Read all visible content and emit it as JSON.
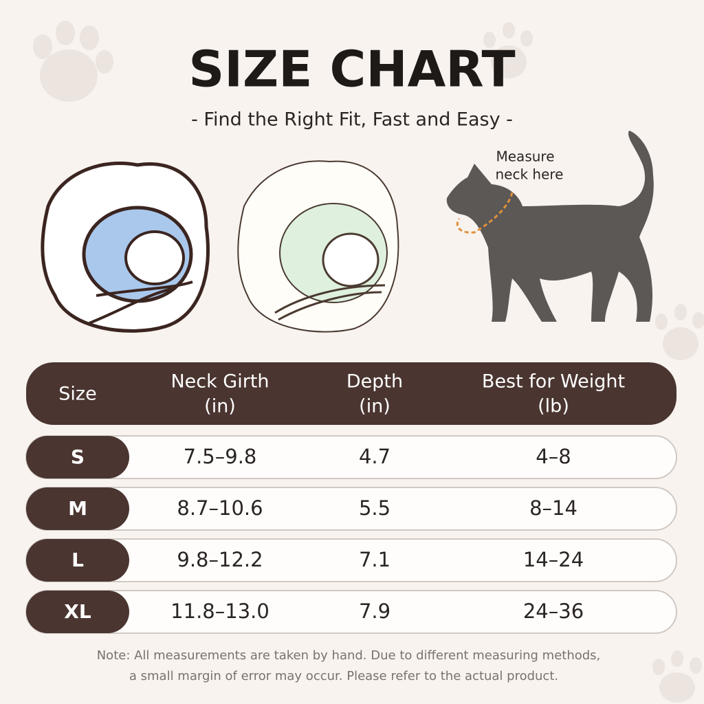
{
  "header": {
    "title": "SIZE CHART",
    "subtitle": "- Find the Right Fit, Fast and Easy -"
  },
  "annotation": {
    "lines": [
      "Measure",
      "neck here"
    ]
  },
  "table": {
    "columns": [
      {
        "name": "Size"
      },
      {
        "name": "Neck Girth",
        "unit": "(in)"
      },
      {
        "name": "Depth",
        "unit": "(in)"
      },
      {
        "name": "Best for Weight",
        "unit": "(lb)"
      }
    ],
    "rows": [
      [
        "S",
        "7.5–9.8",
        "4.7",
        "4–8"
      ],
      [
        "M",
        "8.7–10.6",
        "5.5",
        "8–14"
      ],
      [
        "L",
        "9.8–12.2",
        "7.1",
        "14–24"
      ],
      [
        "XL",
        "11.8–13.0",
        "7.9",
        "24–36"
      ]
    ]
  },
  "note": {
    "lines": [
      "Note: All measurements are taken by hand. Due to different measuring methods,",
      "a small margin of error may occur. Please refer to the actual product."
    ]
  }
}
